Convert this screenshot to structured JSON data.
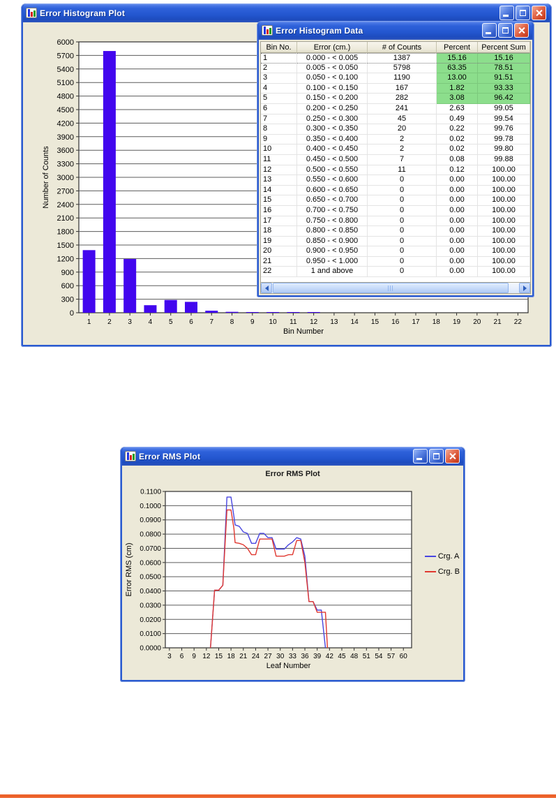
{
  "page": {
    "bottom_rule_color": "#ec622b"
  },
  "histogram_window": {
    "title": "Error Histogram Plot"
  },
  "data_window": {
    "title": "Error Histogram Data",
    "table": {
      "columns": [
        "Bin No.",
        "Error (cm.)",
        "# of Counts",
        "Percent",
        "Percent Sum"
      ],
      "highlight_rows": 5,
      "highlight_color": "#8cde8c",
      "rows": [
        [
          "1",
          "0.000 - < 0.005",
          "1387",
          "15.16",
          "15.16"
        ],
        [
          "2",
          "0.005 - < 0.050",
          "5798",
          "63.35",
          "78.51"
        ],
        [
          "3",
          "0.050 - < 0.100",
          "1190",
          "13.00",
          "91.51"
        ],
        [
          "4",
          "0.100 - < 0.150",
          "167",
          "1.82",
          "93.33"
        ],
        [
          "5",
          "0.150 - < 0.200",
          "282",
          "3.08",
          "96.42"
        ],
        [
          "6",
          "0.200 - < 0.250",
          "241",
          "2.63",
          "99.05"
        ],
        [
          "7",
          "0.250 - < 0.300",
          "45",
          "0.49",
          "99.54"
        ],
        [
          "8",
          "0.300 - < 0.350",
          "20",
          "0.22",
          "99.76"
        ],
        [
          "9",
          "0.350 - < 0.400",
          "2",
          "0.02",
          "99.78"
        ],
        [
          "10",
          "0.400 - < 0.450",
          "2",
          "0.02",
          "99.80"
        ],
        [
          "11",
          "0.450 - < 0.500",
          "7",
          "0.08",
          "99.88"
        ],
        [
          "12",
          "0.500 - < 0.550",
          "11",
          "0.12",
          "100.00"
        ],
        [
          "13",
          "0.550 - < 0.600",
          "0",
          "0.00",
          "100.00"
        ],
        [
          "14",
          "0.600 - < 0.650",
          "0",
          "0.00",
          "100.00"
        ],
        [
          "15",
          "0.650 - < 0.700",
          "0",
          "0.00",
          "100.00"
        ],
        [
          "16",
          "0.700 - < 0.750",
          "0",
          "0.00",
          "100.00"
        ],
        [
          "17",
          "0.750 - < 0.800",
          "0",
          "0.00",
          "100.00"
        ],
        [
          "18",
          "0.800 - < 0.850",
          "0",
          "0.00",
          "100.00"
        ],
        [
          "19",
          "0.850 - < 0.900",
          "0",
          "0.00",
          "100.00"
        ],
        [
          "20",
          "0.900 - < 0.950",
          "0",
          "0.00",
          "100.00"
        ],
        [
          "21",
          "0.950 - < 1.000",
          "0",
          "0.00",
          "100.00"
        ],
        [
          "22",
          "1 and above",
          "0",
          "0.00",
          "100.00"
        ]
      ]
    }
  },
  "rms_window": {
    "title": "Error RMS Plot"
  },
  "chart_data": [
    {
      "id": "error-histogram",
      "type": "bar",
      "title": "",
      "xlabel": "Bin Number",
      "ylabel": "Number of Counts",
      "categories": [
        1,
        2,
        3,
        4,
        5,
        6,
        7,
        8,
        9,
        10,
        11,
        12,
        13,
        14,
        15,
        16,
        17,
        18,
        19,
        20,
        21,
        22
      ],
      "values": [
        1387,
        5798,
        1190,
        167,
        282,
        241,
        45,
        20,
        2,
        2,
        7,
        11,
        0,
        0,
        0,
        0,
        0,
        0,
        0,
        0,
        0,
        0
      ],
      "ylim": [
        0,
        6000
      ],
      "ytick_step": 300,
      "grid": true,
      "legend_position": "none",
      "bar_color": "#4206ee"
    },
    {
      "id": "error-rms",
      "type": "line",
      "title": "Error RMS Plot",
      "xlabel": "Leaf Number",
      "ylabel": "Error RMS (cm)",
      "xlim": [
        2,
        62
      ],
      "xticks": [
        3,
        6,
        9,
        12,
        15,
        18,
        21,
        24,
        27,
        30,
        33,
        36,
        39,
        42,
        45,
        48,
        51,
        54,
        57,
        60
      ],
      "ylim": [
        0,
        0.11
      ],
      "ytick_step": 0.01,
      "grid": "horizontal",
      "legend_position": "right",
      "series": [
        {
          "name": "Crg. A",
          "color": "#4845e0",
          "x": [
            13,
            14,
            15,
            16,
            17,
            18,
            18.7,
            19,
            20,
            21,
            22,
            23,
            24,
            25,
            26,
            27,
            28,
            29,
            30,
            31,
            32,
            33,
            34,
            35,
            36,
            37,
            38,
            39,
            40,
            41
          ],
          "y": [
            0,
            0.0405,
            0.0405,
            0.044,
            0.106,
            0.106,
            0.0925,
            0.0865,
            0.0855,
            0.0815,
            0.0805,
            0.0735,
            0.0735,
            0.0805,
            0.0805,
            0.0775,
            0.0775,
            0.0695,
            0.0695,
            0.0695,
            0.0725,
            0.0745,
            0.0775,
            0.0765,
            0.0645,
            0.0325,
            0.0325,
            0.0265,
            0.0265,
            0
          ]
        },
        {
          "name": "Crg. B",
          "color": "#e03830",
          "x": [
            13,
            14,
            15,
            16,
            17,
            18,
            18.7,
            19,
            20,
            21,
            22,
            23,
            24,
            25,
            26,
            27,
            28,
            29,
            30,
            31,
            32,
            33,
            34,
            35,
            36,
            37,
            38,
            39,
            40,
            41,
            41.5
          ],
          "y": [
            0,
            0.0405,
            0.0405,
            0.044,
            0.097,
            0.097,
            0.084,
            0.074,
            0.0735,
            0.0725,
            0.07,
            0.0655,
            0.0655,
            0.0765,
            0.0765,
            0.0765,
            0.0765,
            0.0645,
            0.0645,
            0.0645,
            0.0655,
            0.0655,
            0.0755,
            0.0755,
            0.06,
            0.0325,
            0.0325,
            0.025,
            0.025,
            0.025,
            0
          ]
        }
      ]
    }
  ]
}
